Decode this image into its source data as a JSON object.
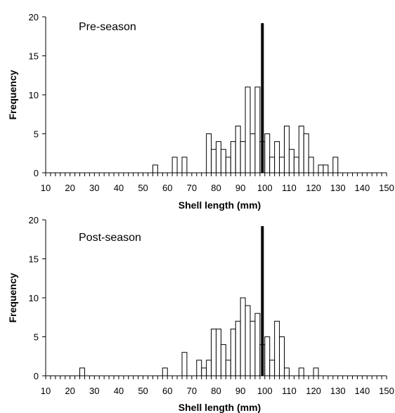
{
  "chart_data": [
    {
      "type": "bar",
      "panel_label": "Pre-season",
      "xlabel": "Shell length (mm)",
      "ylabel": "Frequency",
      "xlim": [
        10,
        150
      ],
      "ylim": [
        0,
        20
      ],
      "x_ticks": [
        10,
        20,
        30,
        40,
        50,
        60,
        70,
        80,
        90,
        100,
        110,
        120,
        130,
        140,
        150
      ],
      "y_ticks": [
        0,
        5,
        10,
        15,
        20
      ],
      "bin_width": 2,
      "reference_line_x": 99,
      "bins": [
        {
          "x": 54,
          "value": 1
        },
        {
          "x": 62,
          "value": 2
        },
        {
          "x": 66,
          "value": 2
        },
        {
          "x": 76,
          "value": 5
        },
        {
          "x": 78,
          "value": 3
        },
        {
          "x": 80,
          "value": 4
        },
        {
          "x": 82,
          "value": 3
        },
        {
          "x": 84,
          "value": 2
        },
        {
          "x": 86,
          "value": 4
        },
        {
          "x": 88,
          "value": 6
        },
        {
          "x": 90,
          "value": 4
        },
        {
          "x": 92,
          "value": 11
        },
        {
          "x": 94,
          "value": 5
        },
        {
          "x": 96,
          "value": 11
        },
        {
          "x": 98,
          "value": 4
        },
        {
          "x": 100,
          "value": 5
        },
        {
          "x": 102,
          "value": 2
        },
        {
          "x": 104,
          "value": 4
        },
        {
          "x": 106,
          "value": 2
        },
        {
          "x": 108,
          "value": 6
        },
        {
          "x": 110,
          "value": 3
        },
        {
          "x": 112,
          "value": 2
        },
        {
          "x": 114,
          "value": 6
        },
        {
          "x": 116,
          "value": 5
        },
        {
          "x": 118,
          "value": 2
        },
        {
          "x": 122,
          "value": 1
        },
        {
          "x": 124,
          "value": 1
        },
        {
          "x": 128,
          "value": 2
        }
      ]
    },
    {
      "type": "bar",
      "panel_label": "Post-season",
      "xlabel": "Shell length (mm)",
      "ylabel": "Frequency",
      "xlim": [
        10,
        150
      ],
      "ylim": [
        0,
        20
      ],
      "x_ticks": [
        10,
        20,
        30,
        40,
        50,
        60,
        70,
        80,
        90,
        100,
        110,
        120,
        130,
        140,
        150
      ],
      "y_ticks": [
        0,
        5,
        10,
        15,
        20
      ],
      "bin_width": 2,
      "reference_line_x": 99,
      "bins": [
        {
          "x": 24,
          "value": 1
        },
        {
          "x": 58,
          "value": 1
        },
        {
          "x": 66,
          "value": 3
        },
        {
          "x": 72,
          "value": 2
        },
        {
          "x": 74,
          "value": 1
        },
        {
          "x": 76,
          "value": 2
        },
        {
          "x": 78,
          "value": 6
        },
        {
          "x": 80,
          "value": 6
        },
        {
          "x": 82,
          "value": 4
        },
        {
          "x": 84,
          "value": 2
        },
        {
          "x": 86,
          "value": 6
        },
        {
          "x": 88,
          "value": 7
        },
        {
          "x": 90,
          "value": 10
        },
        {
          "x": 92,
          "value": 9
        },
        {
          "x": 94,
          "value": 7
        },
        {
          "x": 96,
          "value": 8
        },
        {
          "x": 98,
          "value": 4
        },
        {
          "x": 100,
          "value": 5
        },
        {
          "x": 102,
          "value": 2
        },
        {
          "x": 104,
          "value": 7
        },
        {
          "x": 106,
          "value": 5
        },
        {
          "x": 108,
          "value": 1
        },
        {
          "x": 114,
          "value": 1
        },
        {
          "x": 120,
          "value": 1
        }
      ]
    }
  ]
}
